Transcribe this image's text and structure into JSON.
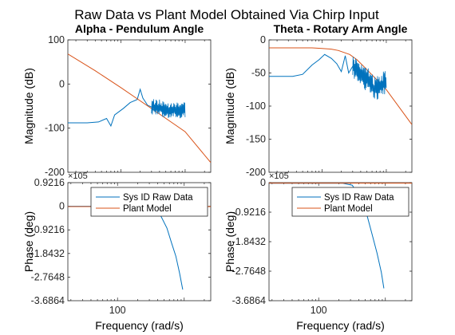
{
  "figure": {
    "title": "Raw Data vs Plant Model Obtained Via Chirp Input"
  },
  "colors": {
    "raw": "#0072BD",
    "model": "#D95319",
    "axis": "#262626"
  },
  "chart_data": [
    {
      "id": "alpha_mag",
      "type": "line",
      "title": "Alpha - Pendulum Angle",
      "xlabel": "",
      "ylabel": "Magnitude (dB)",
      "xscale": "log",
      "ylim": [
        -200,
        100
      ],
      "yticks": [
        "100",
        "0",
        "-100",
        "-200"
      ],
      "series": [
        {
          "name": "Sys ID Raw Data",
          "x": [
            0.15,
            0.3,
            0.45,
            0.6,
            0.7,
            0.8,
            1.1,
            1.4,
            1.8,
            2.0,
            2.2,
            2.4,
            2.6,
            3.0,
            4.0,
            5.0,
            6.5,
            8.0,
            10.0
          ],
          "y": [
            -88,
            -88,
            -86,
            -78,
            -95,
            -70,
            -55,
            -42,
            -35,
            -12,
            -32,
            -40,
            -48,
            -52,
            -55,
            -60,
            -58,
            -62,
            -58
          ]
        },
        {
          "name": "Plant Model",
          "x": [
            0.15,
            0.4,
            1.0,
            2.0,
            4.0,
            10.0,
            25.0
          ],
          "y": [
            68,
            30,
            -8,
            -38,
            -68,
            -108,
            -178
          ]
        }
      ]
    },
    {
      "id": "theta_mag",
      "type": "line",
      "title": "Theta - Rotary Arm Angle",
      "xlabel": "",
      "ylabel": "Magnitude (dB)",
      "xscale": "log",
      "ylim": [
        -200,
        0
      ],
      "yticks": [
        "0",
        "-50",
        "-100",
        "-150",
        "-200"
      ],
      "series": [
        {
          "name": "Sys ID Raw Data",
          "x": [
            0.15,
            0.35,
            0.5,
            0.7,
            0.9,
            1.1,
            1.4,
            1.7,
            2.0,
            2.3,
            2.6,
            3.0,
            3.5,
            4.0,
            5.0,
            6.5,
            8.0,
            10.0
          ],
          "y": [
            -55,
            -55,
            -52,
            -38,
            -30,
            -22,
            -28,
            -36,
            -48,
            -24,
            -50,
            -40,
            -45,
            -55,
            -60,
            -75,
            -70,
            -65
          ]
        },
        {
          "name": "Plant Model",
          "x": [
            0.15,
            0.7,
            1.0,
            1.4,
            1.8,
            2.2,
            2.7,
            3.5,
            5.0,
            10.0,
            25.0
          ],
          "y": [
            -12,
            -12,
            -13,
            -14,
            -16,
            -19,
            -22,
            -30,
            -45,
            -75,
            -128
          ]
        }
      ]
    },
    {
      "id": "alpha_phase",
      "type": "line",
      "title": "",
      "xlabel": "Frequency  (rad/s)",
      "ylabel": "Phase (deg)",
      "xscale": "log",
      "ylim": [
        -368640,
        92160
      ],
      "yticks": [
        "0.9216",
        "0",
        "-0.9216",
        "-1.8432",
        "-2.7648",
        "-3.6864"
      ],
      "exponent": "×10^5",
      "xtick": "10^0",
      "legend": {
        "placement": "top-right",
        "entries": [
          "Sys ID Raw Data",
          "Plant Model"
        ]
      },
      "series": [
        {
          "name": "Sys ID Raw Data",
          "x": [
            0.15,
            1.0,
            2.5,
            3.5,
            4.5,
            5.5,
            6.5,
            7.5,
            8.5,
            9.5
          ],
          "y": [
            0,
            0,
            0,
            -5000,
            -40000,
            -85000,
            -145000,
            -195000,
            -260000,
            -325000
          ]
        },
        {
          "name": "Plant Model",
          "x": [
            0.15,
            1.0,
            5.0,
            25.0
          ],
          "y": [
            -1200,
            -1200,
            -1200,
            -1200
          ]
        }
      ]
    },
    {
      "id": "theta_phase",
      "type": "line",
      "title": "",
      "xlabel": "Frequency  (rad/s)",
      "ylabel": "Phase (deg)",
      "xscale": "log",
      "ylim": [
        -368640,
        0
      ],
      "yticks": [
        "0",
        "-0.9216",
        "-1.8432",
        "-2.7648",
        "-3.6864"
      ],
      "exponent": "×10^5",
      "xtick": "10^0",
      "legend": {
        "placement": "top-right",
        "entries": [
          "Sys ID Raw Data",
          "Plant Model"
        ]
      },
      "series": [
        {
          "name": "Sys ID Raw Data",
          "x": [
            0.15,
            1.0,
            2.3,
            3.2,
            4.2,
            5.2,
            6.3,
            7.5,
            8.7,
            9.5
          ],
          "y": [
            -2000,
            -2000,
            -2000,
            -8000,
            -50000,
            -95000,
            -160000,
            -220000,
            -280000,
            -330000
          ]
        },
        {
          "name": "Plant Model",
          "x": [
            0.15,
            1.0,
            5.0,
            25.0
          ],
          "y": [
            -1500,
            -1500,
            -1500,
            -1500
          ]
        }
      ]
    }
  ]
}
